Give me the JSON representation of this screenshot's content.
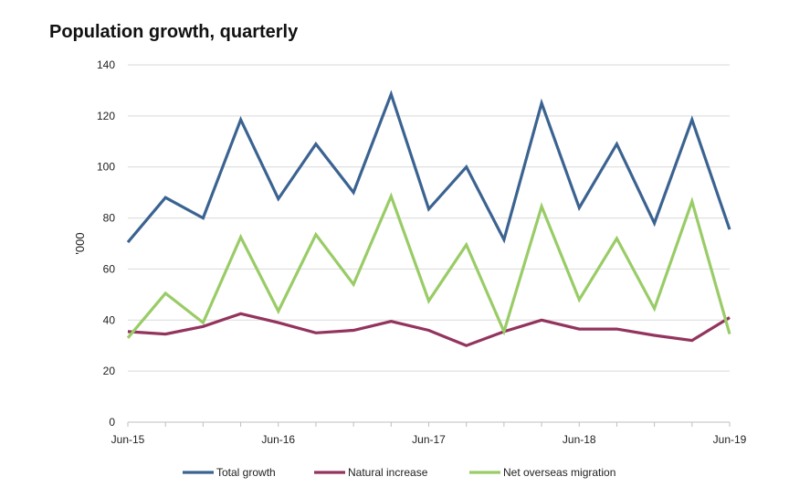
{
  "chart_data": {
    "type": "line",
    "title": "Population growth, quarterly",
    "xlabel": "",
    "ylabel": "'000",
    "ylim": [
      0,
      140
    ],
    "yticks": [
      0,
      20,
      40,
      60,
      80,
      100,
      120,
      140
    ],
    "grid": true,
    "legend_position": "bottom",
    "x": [
      "Jun-15",
      "Sep-15",
      "Dec-15",
      "Mar-16",
      "Jun-16",
      "Sep-16",
      "Dec-16",
      "Mar-17",
      "Jun-17",
      "Sep-17",
      "Dec-17",
      "Mar-18",
      "Jun-18",
      "Sep-18",
      "Dec-18",
      "Mar-19",
      "Jun-19"
    ],
    "x_tick_labels": [
      "Jun-15",
      "Jun-16",
      "Jun-17",
      "Jun-18",
      "Jun-19"
    ],
    "series": [
      {
        "name": "Total growth",
        "color": "#3b6391",
        "values": [
          70.5,
          88,
          80,
          118.5,
          87.5,
          109,
          90,
          128.5,
          83.5,
          100,
          71.5,
          125,
          84,
          109,
          78,
          118.5,
          75.5
        ]
      },
      {
        "name": "Natural increase",
        "color": "#93345e",
        "values": [
          35.5,
          34.5,
          37.5,
          42.5,
          39,
          35,
          36,
          39.5,
          36,
          30,
          35.5,
          40,
          36.5,
          36.5,
          34,
          32,
          41
        ]
      },
      {
        "name": "Net overseas migration",
        "color": "#99cc66",
        "values": [
          33,
          50.5,
          39,
          72.5,
          43.5,
          73.5,
          54,
          88.5,
          47.5,
          69.5,
          35.5,
          84.5,
          48,
          72,
          44.5,
          86.5,
          34.5
        ]
      }
    ]
  }
}
